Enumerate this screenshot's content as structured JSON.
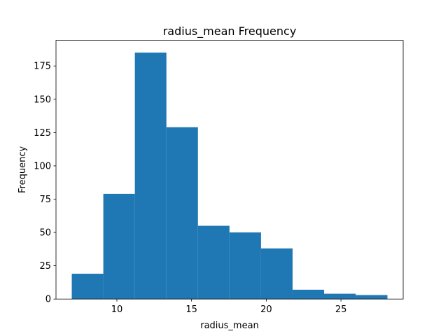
{
  "chart_data": {
    "type": "bar",
    "subtype": "histogram",
    "title": "radius_mean Frequency",
    "xlabel": "radius_mean",
    "ylabel": "Frequency",
    "bin_edges": [
      6.981,
      9.0924,
      11.2038,
      13.3152,
      15.4266,
      17.538,
      19.6494,
      21.7608,
      23.8722,
      25.9836,
      28.11
    ],
    "values": [
      19,
      79,
      185,
      129,
      55,
      50,
      38,
      7,
      4,
      3
    ],
    "xlim": [
      5.9247,
      29.1663
    ],
    "ylim": [
      0,
      194.25
    ],
    "xticks": [
      10,
      15,
      20,
      25
    ],
    "yticks": [
      0,
      25,
      50,
      75,
      100,
      125,
      150,
      175
    ],
    "bar_color": "#1f77b4",
    "grid": false,
    "legend": "none"
  }
}
